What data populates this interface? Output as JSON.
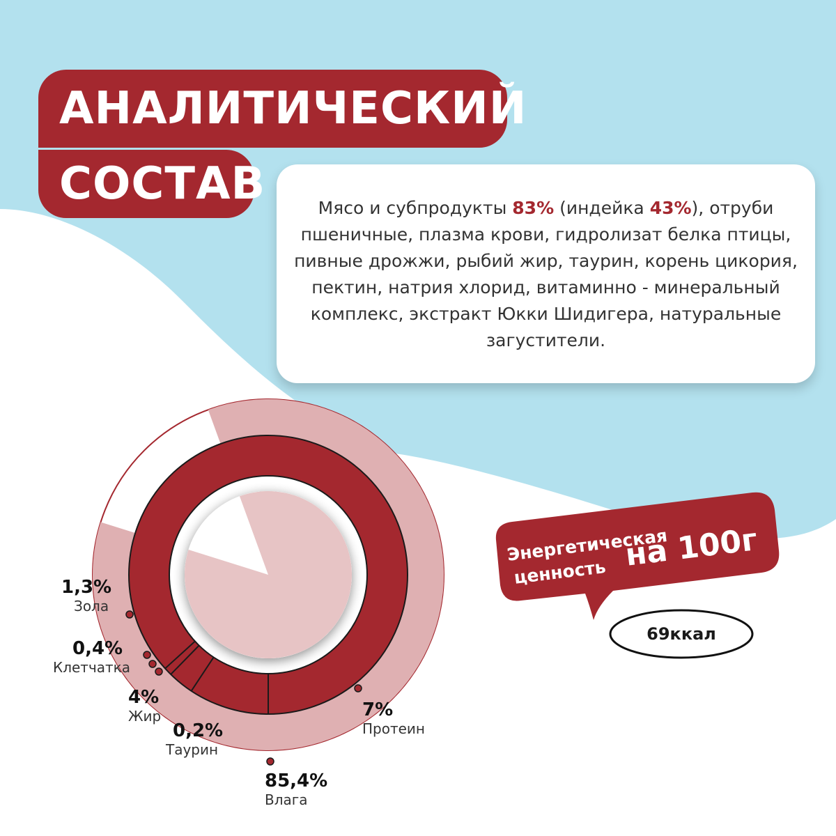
{
  "title": {
    "line1": "АНАЛИТИЧЕСКИЙ",
    "line2": "СОСТАВ"
  },
  "composition": {
    "part1": "Мясо и субпродукты ",
    "meat_pct": "83%",
    "part2": " (индейка ",
    "turkey_pct": "43%",
    "part3": "), отруби пшеничные, плазма крови, гидролизат белка птицы, пивные дрожжи, рыбий жир, таурин, корень цикория, пектин, натрия хлорид, витаминно - минеральный комплекс, экстракт Юкки Шидигера, натуральные загустители."
  },
  "energy": {
    "label_line1": "Энергетическая",
    "label_line2": "ценность",
    "per": "на 100г",
    "value": "69ккал"
  },
  "colors": {
    "accent": "#a4282f",
    "ring_light": "#dfb0b2",
    "center_light": "#e7c4c5",
    "sky": "#b3e1ee"
  },
  "chart_data": {
    "type": "pie",
    "slices": [
      {
        "name": "Влага",
        "label": "85,4%",
        "value": 85.4
      },
      {
        "name": "Протеин",
        "label": "7%",
        "value": 7
      },
      {
        "name": "Жир",
        "label": "4%",
        "value": 4
      },
      {
        "name": "Зола",
        "label": "1,3%",
        "value": 1.3
      },
      {
        "name": "Клетчатка",
        "label": "0,4%",
        "value": 0.4
      },
      {
        "name": "Таурин",
        "label": "0,2%",
        "value": 0.2
      }
    ]
  }
}
